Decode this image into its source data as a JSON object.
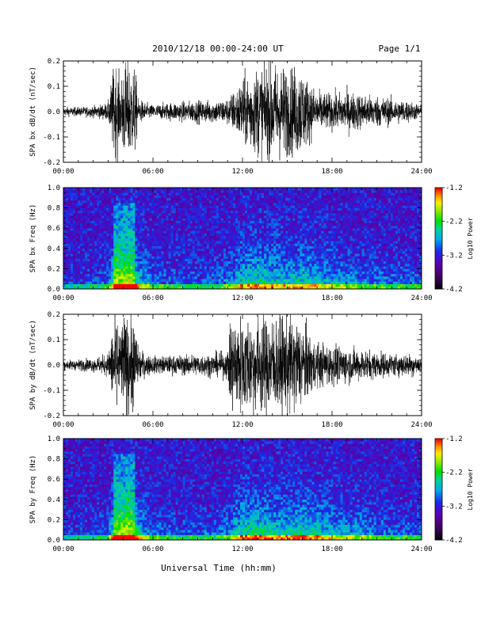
{
  "header": {
    "title": "2010/12/18  00:00-24:00 UT",
    "page": "Page 1/1"
  },
  "xlabel": "Universal Time (hh:mm)",
  "chart_data": [
    {
      "type": "line",
      "ylabel": "SPA bx dB/dt (nT/sec)",
      "xlim": [
        0,
        24
      ],
      "ylim": [
        -0.2,
        0.2
      ],
      "xticks": [
        "00:00",
        "06:00",
        "12:00",
        "18:00",
        "24:00"
      ],
      "yticks": [
        "-0.2",
        "-0.1",
        "0.0",
        "0.1",
        "0.2"
      ],
      "envelope": {
        "hours": [
          0,
          1,
          2,
          3,
          3.4,
          3.6,
          3.8,
          4.0,
          4.4,
          4.8,
          5.0,
          5.5,
          6,
          7,
          8,
          9,
          10,
          11,
          11.5,
          12,
          12.5,
          13,
          14,
          15,
          16,
          16.3,
          17,
          18,
          19,
          20,
          21,
          22,
          23,
          23.5,
          24
        ],
        "amplitude": [
          0.02,
          0.02,
          0.025,
          0.04,
          0.22,
          0.22,
          0.12,
          0.22,
          0.22,
          0.2,
          0.06,
          0.04,
          0.03,
          0.04,
          0.045,
          0.05,
          0.05,
          0.06,
          0.1,
          0.15,
          0.18,
          0.2,
          0.22,
          0.2,
          0.2,
          0.15,
          0.09,
          0.08,
          0.09,
          0.08,
          0.07,
          0.06,
          0.05,
          0.04,
          0.03
        ]
      }
    },
    {
      "type": "heatmap",
      "ylabel": "SPA bx Freq (Hz)",
      "xlim": [
        0,
        24
      ],
      "ylim": [
        0,
        1.0
      ],
      "xticks": [
        "00:00",
        "06:00",
        "12:00",
        "18:00",
        "24:00"
      ],
      "yticks": [
        "0.0",
        "0.2",
        "0.4",
        "0.6",
        "0.8",
        "1.0"
      ],
      "colorbar": {
        "label": "Log10 Power",
        "range": [
          -4.2,
          -1.2
        ],
        "ticks": [
          "-1.2",
          "-2.2",
          "-3.2",
          "-4.2"
        ]
      },
      "activity": {
        "hours": [
          0,
          2,
          3,
          3.5,
          4,
          4.5,
          5,
          6,
          8,
          10,
          11,
          12,
          13,
          14,
          15,
          16,
          17,
          18,
          19,
          20,
          22,
          24
        ],
        "level": [
          0.15,
          0.18,
          0.3,
          0.85,
          0.8,
          0.9,
          0.6,
          0.3,
          0.25,
          0.25,
          0.35,
          0.6,
          0.65,
          0.6,
          0.55,
          0.6,
          0.55,
          0.45,
          0.4,
          0.35,
          0.3,
          0.25
        ]
      }
    },
    {
      "type": "line",
      "ylabel": "SPA by dB/dt (nT/sec)",
      "xlim": [
        0,
        24
      ],
      "ylim": [
        -0.2,
        0.2
      ],
      "xticks": [
        "00:00",
        "06:00",
        "12:00",
        "18:00",
        "24:00"
      ],
      "yticks": [
        "-0.2",
        "-0.1",
        "0.0",
        "0.1",
        "0.2"
      ],
      "envelope": {
        "hours": [
          0,
          1,
          2,
          3,
          3.4,
          3.6,
          3.8,
          4.0,
          4.4,
          4.8,
          5.0,
          5.5,
          6,
          7,
          8,
          9,
          10,
          11,
          11.2,
          12,
          13,
          14,
          15,
          16,
          16.5,
          17,
          18,
          19,
          20,
          21,
          22,
          23,
          23.5,
          24
        ],
        "amplitude": [
          0.02,
          0.025,
          0.03,
          0.05,
          0.22,
          0.22,
          0.15,
          0.22,
          0.22,
          0.2,
          0.08,
          0.05,
          0.04,
          0.04,
          0.045,
          0.05,
          0.05,
          0.06,
          0.22,
          0.22,
          0.22,
          0.22,
          0.22,
          0.2,
          0.14,
          0.1,
          0.09,
          0.08,
          0.07,
          0.06,
          0.05,
          0.05,
          0.05,
          0.04
        ]
      }
    },
    {
      "type": "heatmap",
      "ylabel": "SPA by Freq (Hz)",
      "xlim": [
        0,
        24
      ],
      "ylim": [
        0,
        1.0
      ],
      "xticks": [
        "00:00",
        "06:00",
        "12:00",
        "18:00",
        "24:00"
      ],
      "yticks": [
        "0.0",
        "0.2",
        "0.4",
        "0.6",
        "0.8",
        "1.0"
      ],
      "colorbar": {
        "label": "Log10 Power",
        "range": [
          -4.2,
          -1.2
        ],
        "ticks": [
          "-1.2",
          "-2.2",
          "-3.2",
          "-4.2"
        ]
      },
      "activity": {
        "hours": [
          0,
          2,
          3,
          3.5,
          4,
          4.5,
          5,
          6,
          8,
          10,
          11,
          12,
          13,
          14,
          15,
          16,
          17,
          18,
          19,
          20,
          22,
          24
        ],
        "level": [
          0.15,
          0.18,
          0.3,
          0.85,
          0.8,
          0.9,
          0.6,
          0.3,
          0.25,
          0.25,
          0.35,
          0.65,
          0.7,
          0.6,
          0.6,
          0.65,
          0.6,
          0.5,
          0.45,
          0.4,
          0.3,
          0.25
        ]
      }
    }
  ]
}
